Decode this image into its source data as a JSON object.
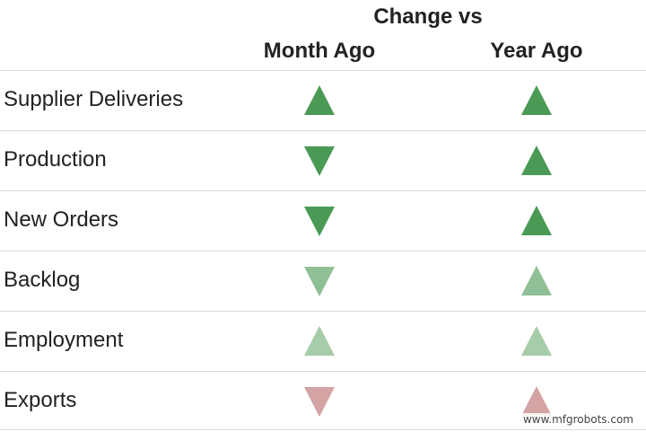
{
  "chart_data": {
    "type": "table",
    "title": "Change vs",
    "columns": [
      "Month Ago",
      "Year Ago"
    ],
    "rows": [
      {
        "label": "Supplier Deliveries",
        "month_ago": {
          "direction": "up",
          "color": "#4a9a55"
        },
        "year_ago": {
          "direction": "up",
          "color": "#4a9a55"
        }
      },
      {
        "label": "Production",
        "month_ago": {
          "direction": "down",
          "color": "#4a9a55"
        },
        "year_ago": {
          "direction": "up",
          "color": "#4a9a55"
        }
      },
      {
        "label": "New Orders",
        "month_ago": {
          "direction": "down",
          "color": "#4a9a55"
        },
        "year_ago": {
          "direction": "up",
          "color": "#4a9a55"
        }
      },
      {
        "label": "Backlog",
        "month_ago": {
          "direction": "down",
          "color": "#8fbf95"
        },
        "year_ago": {
          "direction": "up",
          "color": "#8fbf95"
        }
      },
      {
        "label": "Employment",
        "month_ago": {
          "direction": "up",
          "color": "#a6cca9"
        },
        "year_ago": {
          "direction": "up",
          "color": "#a6cca9"
        }
      },
      {
        "label": "Exports",
        "month_ago": {
          "direction": "down",
          "color": "#d4a3a3"
        },
        "year_ago": {
          "direction": "up",
          "color": "#d4a3a3"
        }
      }
    ]
  },
  "watermark": "www.mfgrobots.com"
}
